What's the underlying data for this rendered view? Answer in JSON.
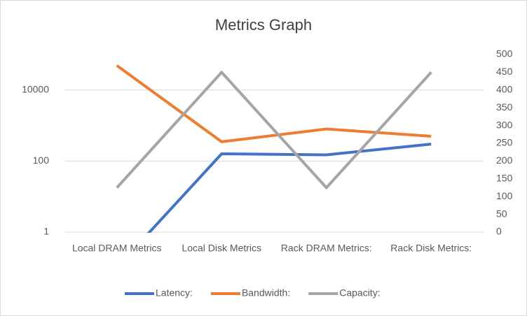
{
  "chart_data": {
    "type": "line",
    "title": "Metrics Graph",
    "categories": [
      "Local DRAM Metrics",
      "Local Disk Metrics",
      "Rack DRAM Metrics:",
      "Rack Disk Metrics:"
    ],
    "series": [
      {
        "name": "Latency:",
        "color": "#4472c4",
        "values": [
          0.1,
          160,
          150,
          300
        ]
      },
      {
        "name": "Bandwidth:",
        "color": "#ed7d31",
        "values": [
          49000,
          350,
          800,
          500
        ]
      },
      {
        "name": "Capacity:",
        "color": "#a5a5a5",
        "values": [
          125,
          450,
          125,
          450
        ],
        "axis": "y2"
      }
    ],
    "ylim": [
      1,
      100000
    ],
    "yticks": [
      1,
      100,
      10000
    ],
    "log_y": true,
    "y2lim": [
      0,
      500
    ],
    "y2ticks": [
      0,
      50,
      100,
      150,
      200,
      250,
      300,
      350,
      400,
      450,
      500
    ],
    "grid": true,
    "legend": "bottom"
  }
}
